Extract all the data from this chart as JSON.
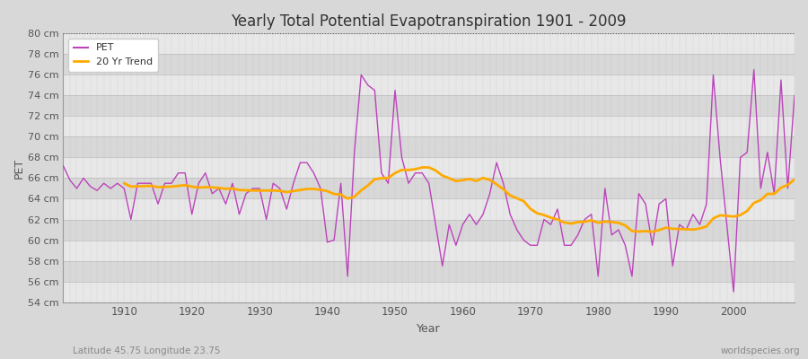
{
  "title": "Yearly Total Potential Evapotranspiration 1901 - 2009",
  "xlabel": "Year",
  "ylabel": "PET",
  "footnote_left": "Latitude 45.75 Longitude 23.75",
  "footnote_right": "worldspecies.org",
  "ylim": [
    54,
    80
  ],
  "yticks": [
    54,
    56,
    58,
    60,
    62,
    64,
    66,
    68,
    70,
    72,
    74,
    76,
    78,
    80
  ],
  "ytick_labels": [
    "54 cm",
    "56 cm",
    "58 cm",
    "60 cm",
    "62 cm",
    "64 cm",
    "66 cm",
    "68 cm",
    "70 cm",
    "72 cm",
    "74 cm",
    "76 cm",
    "78 cm",
    "80 cm"
  ],
  "xlim": [
    1901,
    2009
  ],
  "xticks": [
    1910,
    1920,
    1930,
    1940,
    1950,
    1960,
    1970,
    1980,
    1990,
    2000
  ],
  "bg_color": "#d8d8d8",
  "plot_bg_color_light": "#e8e8e8",
  "plot_bg_color_dark": "#d8d8d8",
  "grid_color": "#c8c8c8",
  "pet_color": "#bb44bb",
  "trend_color": "#ffaa00",
  "legend_labels": [
    "PET",
    "20 Yr Trend"
  ],
  "years": [
    1901,
    1902,
    1903,
    1904,
    1905,
    1906,
    1907,
    1908,
    1909,
    1910,
    1911,
    1912,
    1913,
    1914,
    1915,
    1916,
    1917,
    1918,
    1919,
    1920,
    1921,
    1922,
    1923,
    1924,
    1925,
    1926,
    1927,
    1928,
    1929,
    1930,
    1931,
    1932,
    1933,
    1934,
    1935,
    1936,
    1937,
    1938,
    1939,
    1940,
    1941,
    1942,
    1943,
    1944,
    1945,
    1946,
    1947,
    1948,
    1949,
    1950,
    1951,
    1952,
    1953,
    1954,
    1955,
    1956,
    1957,
    1958,
    1959,
    1960,
    1961,
    1962,
    1963,
    1964,
    1965,
    1966,
    1967,
    1968,
    1969,
    1970,
    1971,
    1972,
    1973,
    1974,
    1975,
    1976,
    1977,
    1978,
    1979,
    1980,
    1981,
    1982,
    1983,
    1984,
    1985,
    1986,
    1987,
    1988,
    1989,
    1990,
    1991,
    1992,
    1993,
    1994,
    1995,
    1996,
    1997,
    1998,
    1999,
    2000,
    2001,
    2002,
    2003,
    2004,
    2005,
    2006,
    2007,
    2008,
    2009
  ],
  "pet": [
    67.2,
    65.8,
    65.0,
    66.0,
    65.2,
    64.8,
    65.5,
    65.0,
    65.5,
    65.0,
    62.0,
    65.5,
    65.5,
    65.5,
    63.5,
    65.5,
    65.5,
    66.5,
    66.5,
    62.5,
    65.5,
    66.5,
    64.5,
    65.0,
    63.5,
    65.5,
    62.5,
    64.5,
    65.0,
    65.0,
    62.0,
    65.5,
    65.0,
    63.0,
    65.5,
    67.5,
    67.5,
    66.5,
    65.0,
    59.8,
    60.0,
    65.5,
    56.5,
    68.5,
    76.0,
    75.0,
    74.5,
    66.5,
    65.5,
    74.5,
    68.0,
    65.5,
    66.5,
    66.5,
    65.5,
    61.5,
    57.5,
    61.5,
    59.5,
    61.5,
    62.5,
    61.5,
    62.5,
    64.5,
    67.5,
    65.5,
    62.5,
    61.0,
    60.0,
    59.5,
    59.5,
    62.0,
    61.5,
    63.0,
    59.5,
    59.5,
    60.5,
    62.0,
    62.5,
    56.5,
    65.0,
    60.5,
    61.0,
    59.5,
    56.5,
    64.5,
    63.5,
    59.5,
    63.5,
    64.0,
    57.5,
    61.5,
    61.0,
    62.5,
    61.5,
    63.5,
    76.0,
    68.0,
    61.5,
    55.0,
    68.0,
    68.5,
    76.5,
    65.0,
    68.5,
    64.5,
    75.5,
    65.0,
    74.0
  ]
}
